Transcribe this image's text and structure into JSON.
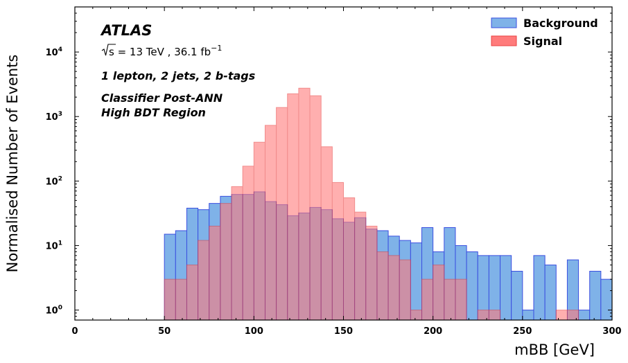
{
  "chart_data": {
    "type": "bar",
    "title": "",
    "xlabel": "mBB [GeV]",
    "ylabel": "Normalised Number of Events",
    "xlim": [
      0,
      300
    ],
    "ylim": [
      0.7,
      50000
    ],
    "yscale": "log",
    "bin_width": 6.25,
    "x_ticks": [
      0,
      50,
      100,
      150,
      200,
      250,
      300
    ],
    "x_tick_labels": [
      "0",
      "50",
      "100",
      "150",
      "200",
      "250",
      "300"
    ],
    "y_ticks": [
      1,
      10,
      100,
      1000,
      10000
    ],
    "y_tick_labels": [
      "10",
      "10",
      "10",
      "10",
      "10"
    ],
    "y_tick_exponents": [
      "0",
      "1",
      "2",
      "3",
      "4"
    ],
    "bin_edges_start": 50,
    "legend_position": "top-right",
    "series": [
      {
        "name": "Background",
        "color": "#7fb2e8",
        "edge": "#3a4ee0",
        "values": [
          15,
          17,
          38,
          36,
          45,
          58,
          62,
          62,
          68,
          48,
          43,
          29,
          32,
          39,
          36,
          26,
          23,
          27,
          18,
          17,
          14,
          12,
          11,
          19,
          8,
          19,
          10,
          8,
          7,
          7,
          7,
          4,
          1,
          7,
          5,
          0,
          6,
          1,
          4,
          3
        ]
      },
      {
        "name": "Signal",
        "color": "#ff7b7b",
        "edge": "#e84040",
        "values": [
          3,
          3,
          5,
          12,
          20,
          45,
          82,
          170,
          400,
          730,
          1380,
          2250,
          2750,
          2100,
          340,
          95,
          55,
          33,
          20,
          8,
          7,
          6,
          1,
          3,
          5,
          3,
          3,
          0,
          1,
          1,
          0,
          0,
          0,
          0,
          0,
          1,
          1,
          0,
          0,
          0
        ]
      }
    ],
    "annotations": {
      "experiment": "ATLAS",
      "energy_prefix": "s",
      "energy_text": " = 13 TeV , 36.1 fb",
      "energy_exp": "−1",
      "selection": "1 lepton, 2 jets, 2 b-tags",
      "classifier": "Classifier Post-ANN",
      "region": "High BDT Region"
    }
  }
}
